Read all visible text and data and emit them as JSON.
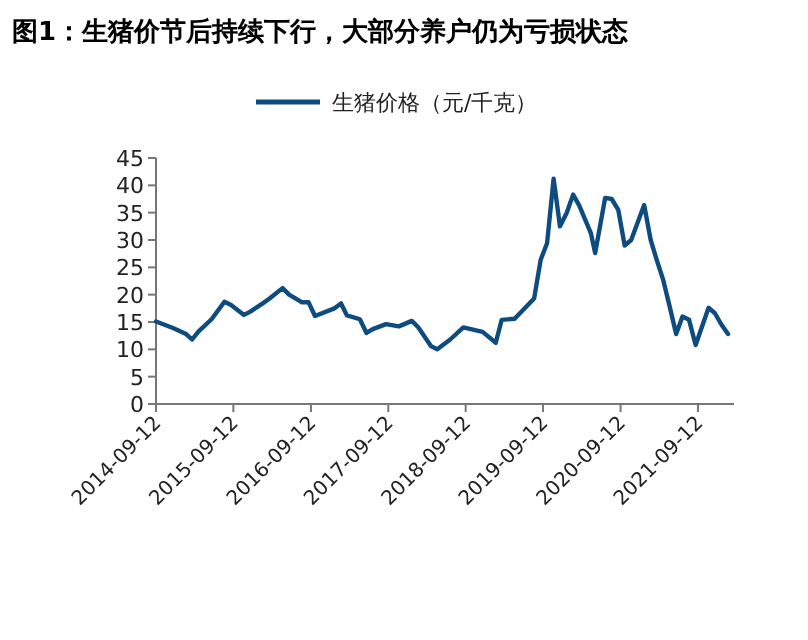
{
  "chart_data": {
    "type": "line",
    "title": "图1：生猪价节后持续下行，大部分养户仍为亏损状态",
    "series": [
      {
        "name": "生猪价格（元/千克）",
        "color": "#0e4c80",
        "x": [
          "2014-09-12",
          "2014-12",
          "2015-02",
          "2015-03",
          "2015-04",
          "2015-06",
          "2015-08",
          "2015-09",
          "2015-11",
          "2015-12",
          "2016-02",
          "2016-03",
          "2016-05",
          "2016-06",
          "2016-08",
          "2016-09",
          "2016-10",
          "2017-01",
          "2017-02",
          "2017-03",
          "2017-05",
          "2017-06",
          "2017-07",
          "2017-09",
          "2017-11",
          "2018-01",
          "2018-02",
          "2018-04",
          "2018-05",
          "2018-07",
          "2018-09",
          "2018-12",
          "2019-02",
          "2019-03",
          "2019-05",
          "2019-08",
          "2019-09",
          "2019-10",
          "2019-11",
          "2019-12",
          "2020-01",
          "2020-02",
          "2020-03",
          "2020-04-25",
          "2020-05-15",
          "2020-07",
          "2020-08",
          "2020-09",
          "2020-10",
          "2020-11",
          "2021-01",
          "2021-02",
          "2021-03",
          "2021-04",
          "2021-05",
          "2021-06",
          "2021-07",
          "2021-08",
          "2021-09",
          "2021-11",
          "2021-12",
          "2022-01",
          "2022-02"
        ],
        "values": [
          15.1,
          13.9,
          12.8,
          11.8,
          13.3,
          15.5,
          18.7,
          18.1,
          16.3,
          16.9,
          18.5,
          19.3,
          21.2,
          20,
          18.6,
          18.6,
          16.1,
          17.5,
          18.4,
          16.2,
          15.5,
          13,
          13.7,
          14.6,
          14.2,
          15.2,
          14,
          10.6,
          10,
          11.8,
          14,
          13.2,
          11.2,
          15.4,
          15.6,
          19.3,
          26.4,
          29.4,
          41.2,
          32.5,
          34.9,
          38.3,
          36.3,
          31.2,
          27.6,
          37.7,
          37.5,
          35.5,
          29,
          30,
          36.4,
          30,
          26.4,
          22.7,
          17.9,
          12.8,
          16,
          15.4,
          10.8,
          17.6,
          16.6,
          14.5,
          12.8
        ]
      }
    ],
    "xlim": [
      "2014-09-12",
      "2022-03-01"
    ],
    "xticks": [
      "2014-09-12",
      "2015-09-12",
      "2016-09-12",
      "2017-09-12",
      "2018-09-12",
      "2019-09-12",
      "2020-09-12",
      "2021-09-12"
    ],
    "ylim": [
      0,
      45
    ],
    "yticks": [
      0,
      5,
      10,
      15,
      20,
      25,
      30,
      35,
      40,
      45
    ],
    "legend": "top",
    "grid": false,
    "marker": "none",
    "line_style": "solid"
  }
}
